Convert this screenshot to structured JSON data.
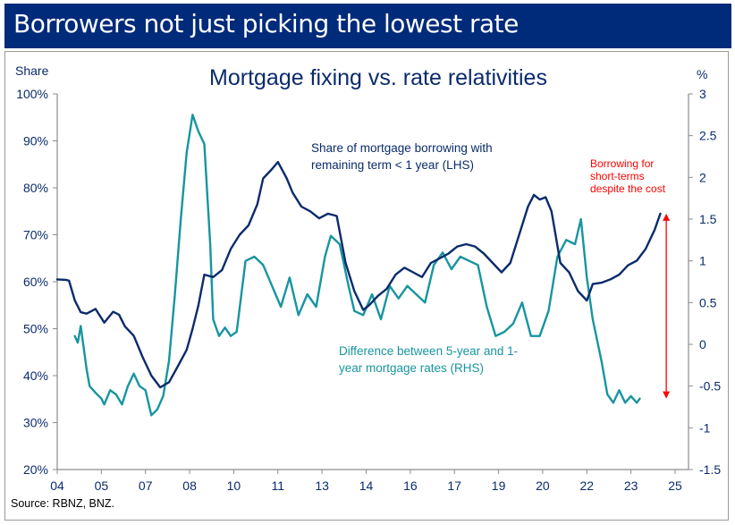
{
  "banner": {
    "title": "Borrowers not just picking the lowest rate"
  },
  "source": "Source: RBNZ, BNZ.",
  "colors": {
    "banner": "#002a7a",
    "lhs_series": "#0b2b6b",
    "rhs_series": "#17959f",
    "annotation": "#ff0000",
    "axis_text": "#0b2b6b"
  },
  "chart_data": {
    "type": "line",
    "title": "Mortgage fixing vs. rate relativities",
    "ylabel_left": "Share",
    "ylabel_right": "%",
    "xlim": [
      2004,
      2025.6
    ],
    "ylim_left": [
      20,
      100
    ],
    "ylim_right": [
      -1.5,
      3
    ],
    "x_tick_labels": [
      "04",
      "05",
      "07",
      "08",
      "10",
      "11",
      "13",
      "14",
      "16",
      "17",
      "19",
      "20",
      "22",
      "23",
      "25"
    ],
    "x_tick_values": [
      2004,
      2005.5,
      2007,
      2008.5,
      2010,
      2011.5,
      2013,
      2014.5,
      2016,
      2017.5,
      2019,
      2020.5,
      2022,
      2023.5,
      2025
    ],
    "y_left_tick_labels": [
      "100%",
      "90%",
      "80%",
      "70%",
      "60%",
      "50%",
      "40%",
      "30%",
      "20%"
    ],
    "y_left_tick_values": [
      100,
      90,
      80,
      70,
      60,
      50,
      40,
      30,
      20
    ],
    "y_right_tick_labels": [
      "3",
      "2.5",
      "2",
      "1.5",
      "1",
      "0.5",
      "0",
      "-0.5",
      "-1",
      "-1.5"
    ],
    "y_right_tick_values": [
      3,
      2.5,
      2,
      1.5,
      1,
      0.5,
      0,
      -0.5,
      -1,
      -1.5
    ],
    "grid": false,
    "series": [
      {
        "name": "Share of mortgage borrowing with remaining term < 1 year (LHS)",
        "axis": "left",
        "label_lines": [
          "Share of mortgage borrowing with",
          "remaining term < 1 year (LHS)"
        ],
        "x": [
          2004.0,
          2004.3,
          2004.4,
          2004.6,
          2004.8,
          2005.0,
          2005.3,
          2005.6,
          2005.9,
          2006.1,
          2006.3,
          2006.6,
          2006.9,
          2007.2,
          2007.5,
          2007.8,
          2008.1,
          2008.4,
          2008.6,
          2008.8,
          2009.0,
          2009.3,
          2009.6,
          2009.9,
          2010.2,
          2010.5,
          2010.8,
          2011.0,
          2011.3,
          2011.5,
          2011.8,
          2012.0,
          2012.3,
          2012.6,
          2012.9,
          2013.2,
          2013.5,
          2013.8,
          2014.1,
          2014.4,
          2014.6,
          2014.9,
          2015.2,
          2015.5,
          2015.8,
          2016.1,
          2016.4,
          2016.7,
          2017.0,
          2017.3,
          2017.6,
          2017.9,
          2018.2,
          2018.5,
          2018.8,
          2019.1,
          2019.4,
          2019.7,
          2020.0,
          2020.2,
          2020.4,
          2020.6,
          2020.8,
          2021.1,
          2021.4,
          2021.7,
          2022.0,
          2022.2,
          2022.5,
          2022.8,
          2023.1,
          2023.4,
          2023.7,
          2024.0,
          2024.3,
          2024.5
        ],
        "y": [
          60.5,
          60.4,
          60.2,
          56.0,
          53.5,
          53.2,
          54.2,
          51.3,
          53.6,
          53.0,
          50.5,
          48.5,
          44.0,
          40.0,
          37.5,
          38.6,
          42.0,
          45.5,
          50.0,
          55.0,
          61.5,
          61.0,
          62.5,
          67.0,
          70.0,
          72.0,
          76.5,
          82.0,
          84.0,
          85.5,
          82.0,
          79.0,
          76.0,
          75.0,
          73.5,
          74.5,
          74.0,
          64.0,
          58.0,
          54.0,
          55.0,
          57.0,
          58.5,
          61.5,
          63.0,
          62.0,
          61.0,
          64.0,
          65.0,
          66.0,
          67.5,
          68.0,
          67.5,
          66.0,
          64.0,
          62.0,
          64.0,
          70.0,
          76.0,
          78.5,
          77.5,
          78.0,
          75.0,
          64.0,
          62.0,
          58.0,
          56.0,
          59.5,
          59.8,
          60.5,
          61.5,
          63.5,
          64.5,
          67.0,
          71.0,
          74.5
        ]
      },
      {
        "name": "Difference between 5-year and 1-year mortgage rates (RHS)",
        "axis": "right",
        "label_lines": [
          "Difference between 5-year and 1-",
          "year mortgage rates (RHS)"
        ],
        "x": [
          2004.6,
          2004.7,
          2004.8,
          2005.0,
          2005.1,
          2005.3,
          2005.5,
          2005.6,
          2005.8,
          2006.0,
          2006.2,
          2006.4,
          2006.6,
          2006.8,
          2007.0,
          2007.2,
          2007.4,
          2007.6,
          2007.8,
          2008.0,
          2008.2,
          2008.4,
          2008.6,
          2008.8,
          2009.0,
          2009.2,
          2009.3,
          2009.5,
          2009.7,
          2009.9,
          2010.1,
          2010.4,
          2010.7,
          2011.0,
          2011.3,
          2011.6,
          2011.9,
          2012.2,
          2012.5,
          2012.8,
          2013.1,
          2013.3,
          2013.6,
          2013.9,
          2014.1,
          2014.4,
          2014.7,
          2015.0,
          2015.3,
          2015.6,
          2015.9,
          2016.2,
          2016.5,
          2016.8,
          2017.1,
          2017.4,
          2017.7,
          2018.0,
          2018.3,
          2018.6,
          2018.9,
          2019.2,
          2019.5,
          2019.8,
          2020.1,
          2020.4,
          2020.7,
          2021.0,
          2021.3,
          2021.6,
          2021.8,
          2022.0,
          2022.2,
          2022.5,
          2022.7,
          2022.9,
          2023.1,
          2023.3,
          2023.5,
          2023.7,
          2023.8
        ],
        "y": [
          0.1,
          0.02,
          0.22,
          -0.3,
          -0.5,
          -0.58,
          -0.65,
          -0.72,
          -0.55,
          -0.6,
          -0.72,
          -0.5,
          -0.35,
          -0.5,
          -0.55,
          -0.85,
          -0.78,
          -0.62,
          -0.2,
          0.6,
          1.5,
          2.3,
          2.75,
          2.55,
          2.4,
          1.2,
          0.3,
          0.1,
          0.2,
          0.1,
          0.15,
          1.0,
          1.05,
          0.95,
          0.7,
          0.45,
          0.8,
          0.35,
          0.6,
          0.45,
          1.05,
          1.3,
          1.2,
          0.7,
          0.4,
          0.35,
          0.6,
          0.3,
          0.7,
          0.55,
          0.7,
          0.6,
          0.5,
          0.95,
          1.1,
          0.9,
          1.05,
          1.0,
          0.95,
          0.45,
          0.1,
          0.15,
          0.25,
          0.5,
          0.1,
          0.1,
          0.4,
          1.05,
          1.25,
          1.2,
          1.5,
          0.8,
          0.3,
          -0.2,
          -0.6,
          -0.7,
          -0.55,
          -0.7,
          -0.62,
          -0.7,
          -0.65
        ]
      }
    ],
    "annotations": [
      {
        "text_lines": [
          "Borrowing for",
          "short-terms",
          "despite the cost"
        ],
        "type": "double-arrow",
        "x": 2024.7,
        "from_left": 74.5,
        "to_right": -0.65
      }
    ]
  }
}
